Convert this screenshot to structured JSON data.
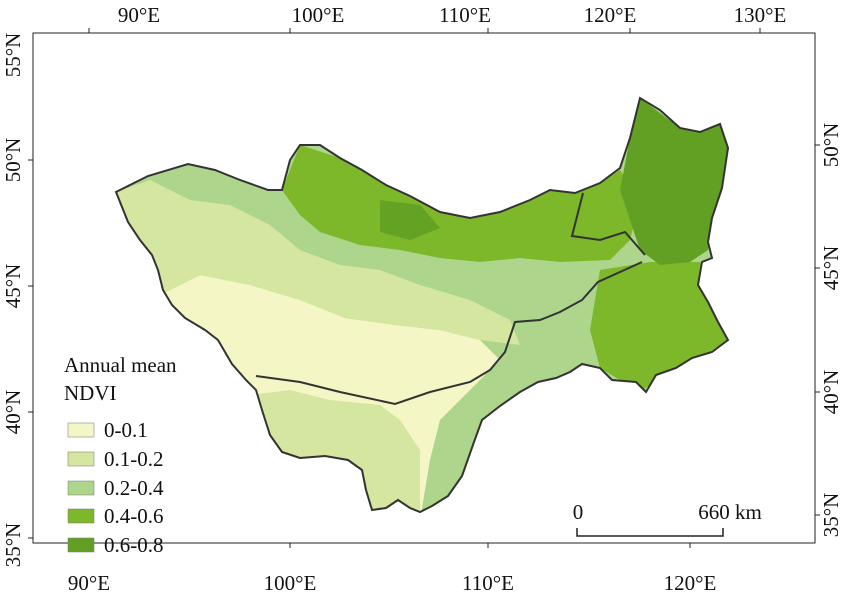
{
  "map": {
    "longitude_labels": [
      "90°E",
      "100°E",
      "110°E",
      "120°E",
      "130°E"
    ],
    "latitude_labels": [
      "55°N",
      "50°N",
      "45°N",
      "40°N",
      "35°N"
    ],
    "legend": {
      "title_line1": "Annual mean",
      "title_line2": "NDVI",
      "classes": [
        {
          "label": "0-0.1",
          "color": "#f4f6c6"
        },
        {
          "label": "0.1-0.2",
          "color": "#d4e6a0"
        },
        {
          "label": "0.2-0.4",
          "color": "#add58c"
        },
        {
          "label": "0.4-0.6",
          "color": "#7cb82a"
        },
        {
          "label": "0.6-0.8",
          "color": "#62a024"
        }
      ]
    },
    "scale_bar": {
      "start_label": "0",
      "end_label": "660 km"
    }
  }
}
